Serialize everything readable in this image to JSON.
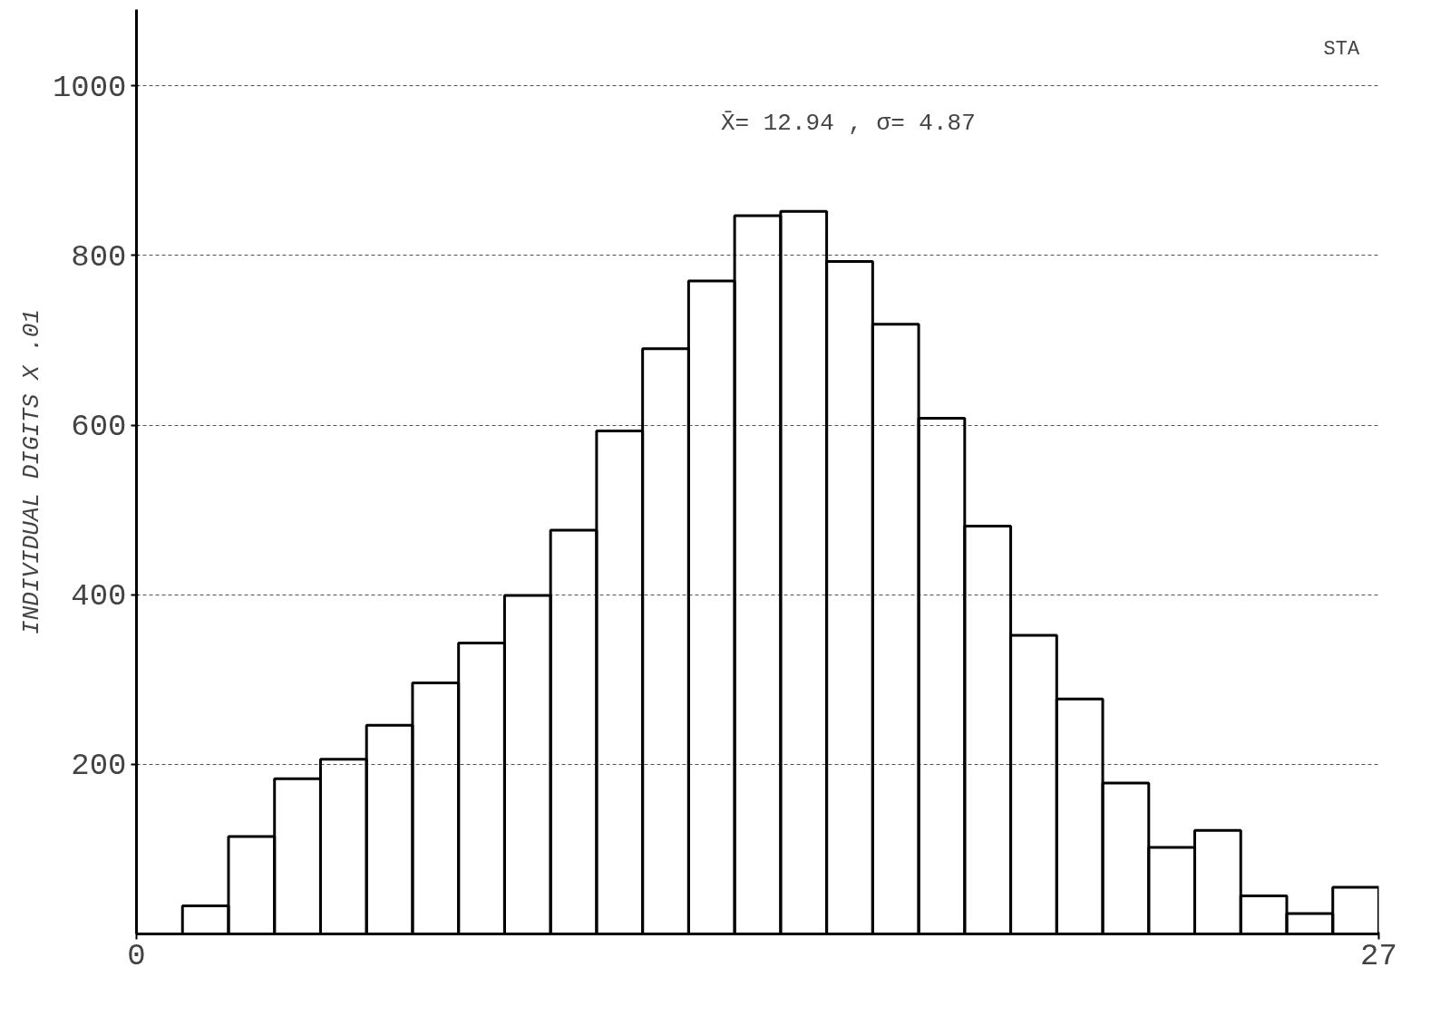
{
  "chart_data": {
    "type": "histogram",
    "ylabel": "INDIVIDUAL DIGITS X .01",
    "annotations": [
      "X̄= 12.94 , σ= 4.87",
      "STA"
    ],
    "bins": [
      1,
      2,
      3,
      4,
      5,
      6,
      7,
      8,
      9,
      10,
      11,
      12,
      13,
      14,
      15,
      16,
      17,
      18,
      19,
      20,
      21,
      22,
      23,
      24,
      25,
      26,
      27
    ],
    "values": [
      33,
      115,
      183,
      206,
      246,
      296,
      343,
      399,
      476,
      593,
      690,
      770,
      847,
      852,
      793,
      719,
      608,
      481,
      352,
      277,
      178,
      102,
      122,
      45,
      24,
      55
    ],
    "color": "#000000",
    "xlim": [
      0,
      27
    ],
    "xticks": [
      0,
      27
    ],
    "ylim": [
      0,
      1000
    ],
    "yticks": [
      200,
      400,
      600,
      800,
      1000
    ],
    "grid": true
  }
}
